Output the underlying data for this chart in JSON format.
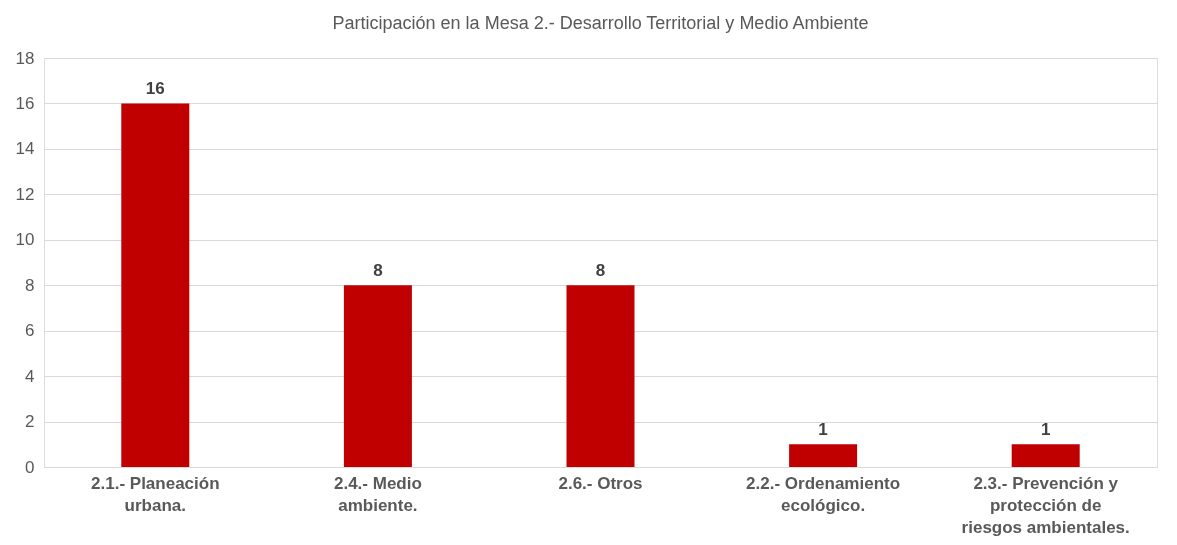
{
  "chart_data": {
    "type": "bar",
    "title": "Participación en la Mesa 2.- Desarrollo Territorial y Medio Ambiente",
    "categories": [
      "2.1.- Planeación urbana.",
      "2.4.- Medio ambiente.",
      "2.6.- Otros",
      "2.2.- Ordenamiento ecológico.",
      "2.3.- Prevención y protección de riesgos ambientales."
    ],
    "values": [
      16,
      8,
      8,
      1,
      1
    ],
    "color": "#c00000",
    "ylim": [
      0,
      18
    ],
    "yticks": [
      0,
      2,
      4,
      6,
      8,
      10,
      12,
      14,
      16,
      18
    ],
    "grid": "y",
    "data_labels": true
  }
}
